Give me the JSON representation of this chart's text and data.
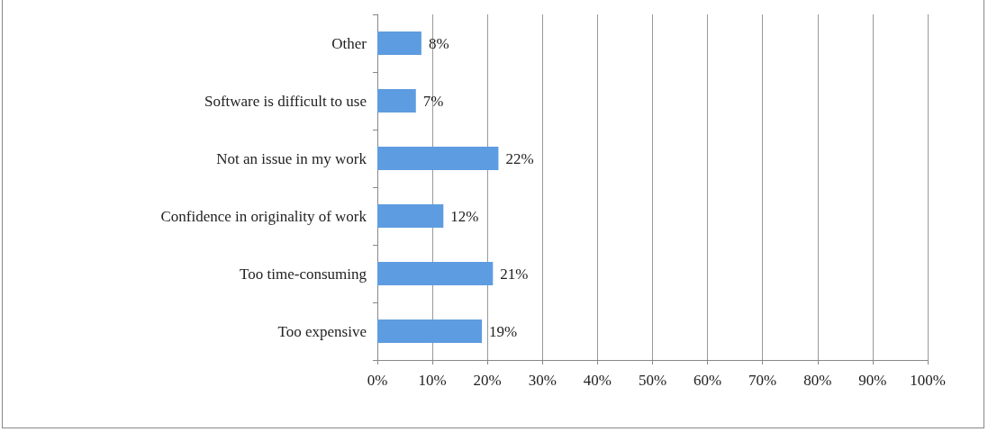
{
  "chart_data": {
    "type": "bar",
    "orientation": "horizontal",
    "categories": [
      "Other",
      "Software is difficult to use",
      "Not an issue in my work",
      "Confidence in originality of work",
      "Too time-consuming",
      "Too expensive"
    ],
    "values": [
      8,
      7,
      22,
      12,
      21,
      19
    ],
    "value_labels": [
      "8%",
      "7%",
      "22%",
      "12%",
      "21%",
      "19%"
    ],
    "color": "#5d9ce0",
    "xlim": [
      0,
      100
    ],
    "xticks": [
      {
        "value": 0,
        "label": "0%"
      },
      {
        "value": 10,
        "label": "10%"
      },
      {
        "value": 20,
        "label": "20%"
      },
      {
        "value": 30,
        "label": "30%"
      },
      {
        "value": 40,
        "label": "40%"
      },
      {
        "value": 50,
        "label": "50%"
      },
      {
        "value": 60,
        "label": "60%"
      },
      {
        "value": 70,
        "label": "70%"
      },
      {
        "value": 80,
        "label": "80%"
      },
      {
        "value": 90,
        "label": "90%"
      },
      {
        "value": 100,
        "label": "100%"
      }
    ],
    "grid": "x"
  }
}
